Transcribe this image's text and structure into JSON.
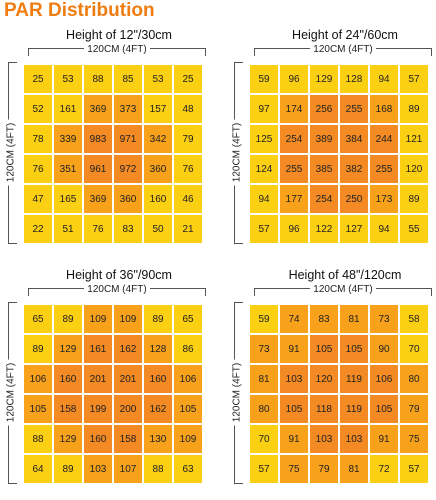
{
  "page": {
    "title": "PAR Distribution"
  },
  "colors": {
    "low": "#fbcf12",
    "mid": "#f7a21a",
    "high": "#f38a23",
    "title": "#f07d12"
  },
  "chart_data": [
    {
      "type": "heatmap",
      "title": "Height of 12\"/30cm",
      "xlabel": "120CM (4FT)",
      "ylabel": "120CM (4FT)",
      "values": [
        [
          25,
          53,
          88,
          85,
          53,
          25
        ],
        [
          52,
          161,
          369,
          373,
          157,
          48
        ],
        [
          78,
          339,
          983,
          971,
          342,
          79
        ],
        [
          76,
          351,
          961,
          972,
          360,
          76
        ],
        [
          47,
          165,
          369,
          360,
          160,
          46
        ],
        [
          22,
          51,
          76,
          83,
          50,
          21
        ]
      ]
    },
    {
      "type": "heatmap",
      "title": "Height of 24\"/60cm",
      "xlabel": "120CM (4FT)",
      "ylabel": "120CM (4FT)",
      "values": [
        [
          59,
          96,
          129,
          128,
          94,
          57
        ],
        [
          97,
          174,
          256,
          255,
          168,
          89
        ],
        [
          125,
          254,
          389,
          384,
          244,
          121
        ],
        [
          124,
          255,
          385,
          382,
          255,
          120
        ],
        [
          94,
          177,
          254,
          250,
          173,
          89
        ],
        [
          57,
          96,
          122,
          127,
          94,
          55
        ]
      ]
    },
    {
      "type": "heatmap",
      "title": "Height of 36\"/90cm",
      "xlabel": "120CM (4FT)",
      "ylabel": "120CM (4FT)",
      "values": [
        [
          65,
          89,
          109,
          109,
          89,
          65
        ],
        [
          89,
          129,
          161,
          162,
          128,
          86
        ],
        [
          106,
          160,
          201,
          201,
          160,
          106
        ],
        [
          105,
          158,
          199,
          200,
          162,
          105
        ],
        [
          88,
          129,
          160,
          158,
          130,
          109
        ],
        [
          64,
          89,
          103,
          107,
          88,
          63
        ]
      ]
    },
    {
      "type": "heatmap",
      "title": "Height of 48\"/120cm",
      "xlabel": "120CM (4FT)",
      "ylabel": "120CM (4FT)",
      "values": [
        [
          59,
          74,
          83,
          81,
          73,
          58
        ],
        [
          73,
          91,
          105,
          105,
          90,
          70
        ],
        [
          81,
          103,
          120,
          119,
          106,
          80
        ],
        [
          80,
          105,
          118,
          119,
          105,
          79
        ],
        [
          70,
          91,
          103,
          103,
          91,
          75
        ],
        [
          57,
          75,
          79,
          81,
          72,
          57
        ]
      ]
    }
  ]
}
